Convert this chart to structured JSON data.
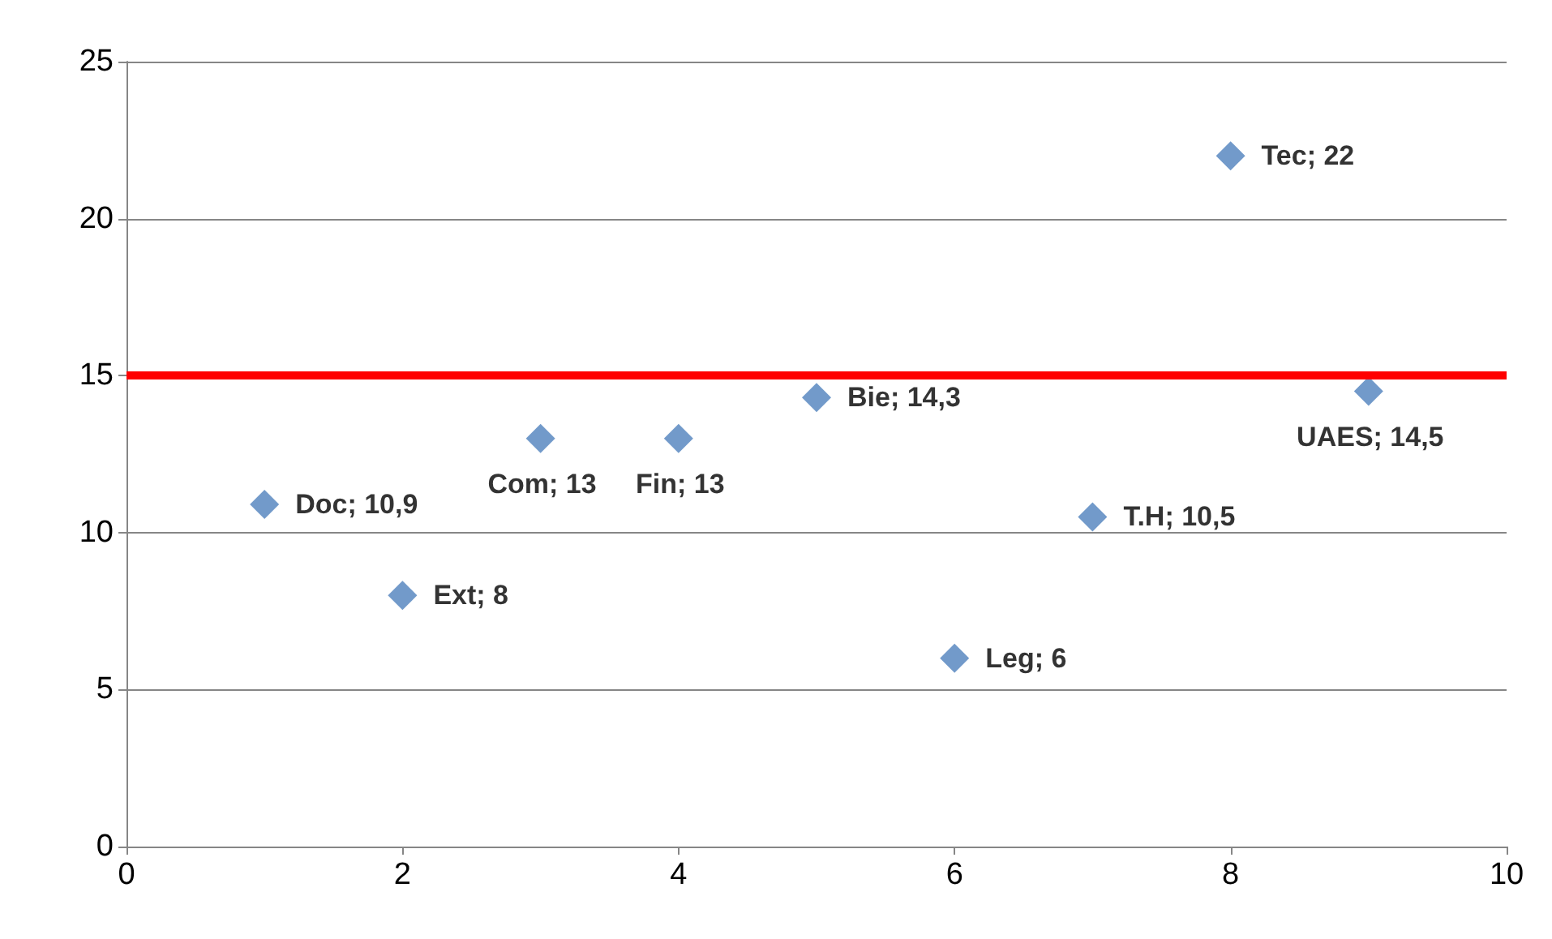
{
  "chart_data": {
    "type": "scatter",
    "marker": "diamond",
    "grid": "y",
    "x": [
      1,
      2,
      3,
      4,
      5,
      6,
      7,
      8,
      9
    ],
    "series": [
      {
        "color": "#4f81bd",
        "values": [
          10.9,
          8,
          13,
          13,
          14.3,
          6,
          10.5,
          22,
          14.5
        ],
        "value_labels": [
          "Doc; 10,9",
          "Ext; 8",
          "Com; 13",
          "Fin; 13",
          "Bie; 14,3",
          "Leg; 6",
          "T.H; 10,5",
          "Tec; 22",
          "UAES; 14,5"
        ]
      }
    ],
    "xlim": [
      0,
      10
    ],
    "xticks": [
      0,
      2,
      4,
      6,
      8,
      10
    ],
    "ylim": [
      0,
      25
    ],
    "yticks": [
      0,
      5,
      10,
      15,
      20,
      25
    ],
    "ref_lines": [
      {
        "axis": "y",
        "value": 15,
        "color": "#ff0000",
        "line_style": "solid"
      }
    ]
  }
}
